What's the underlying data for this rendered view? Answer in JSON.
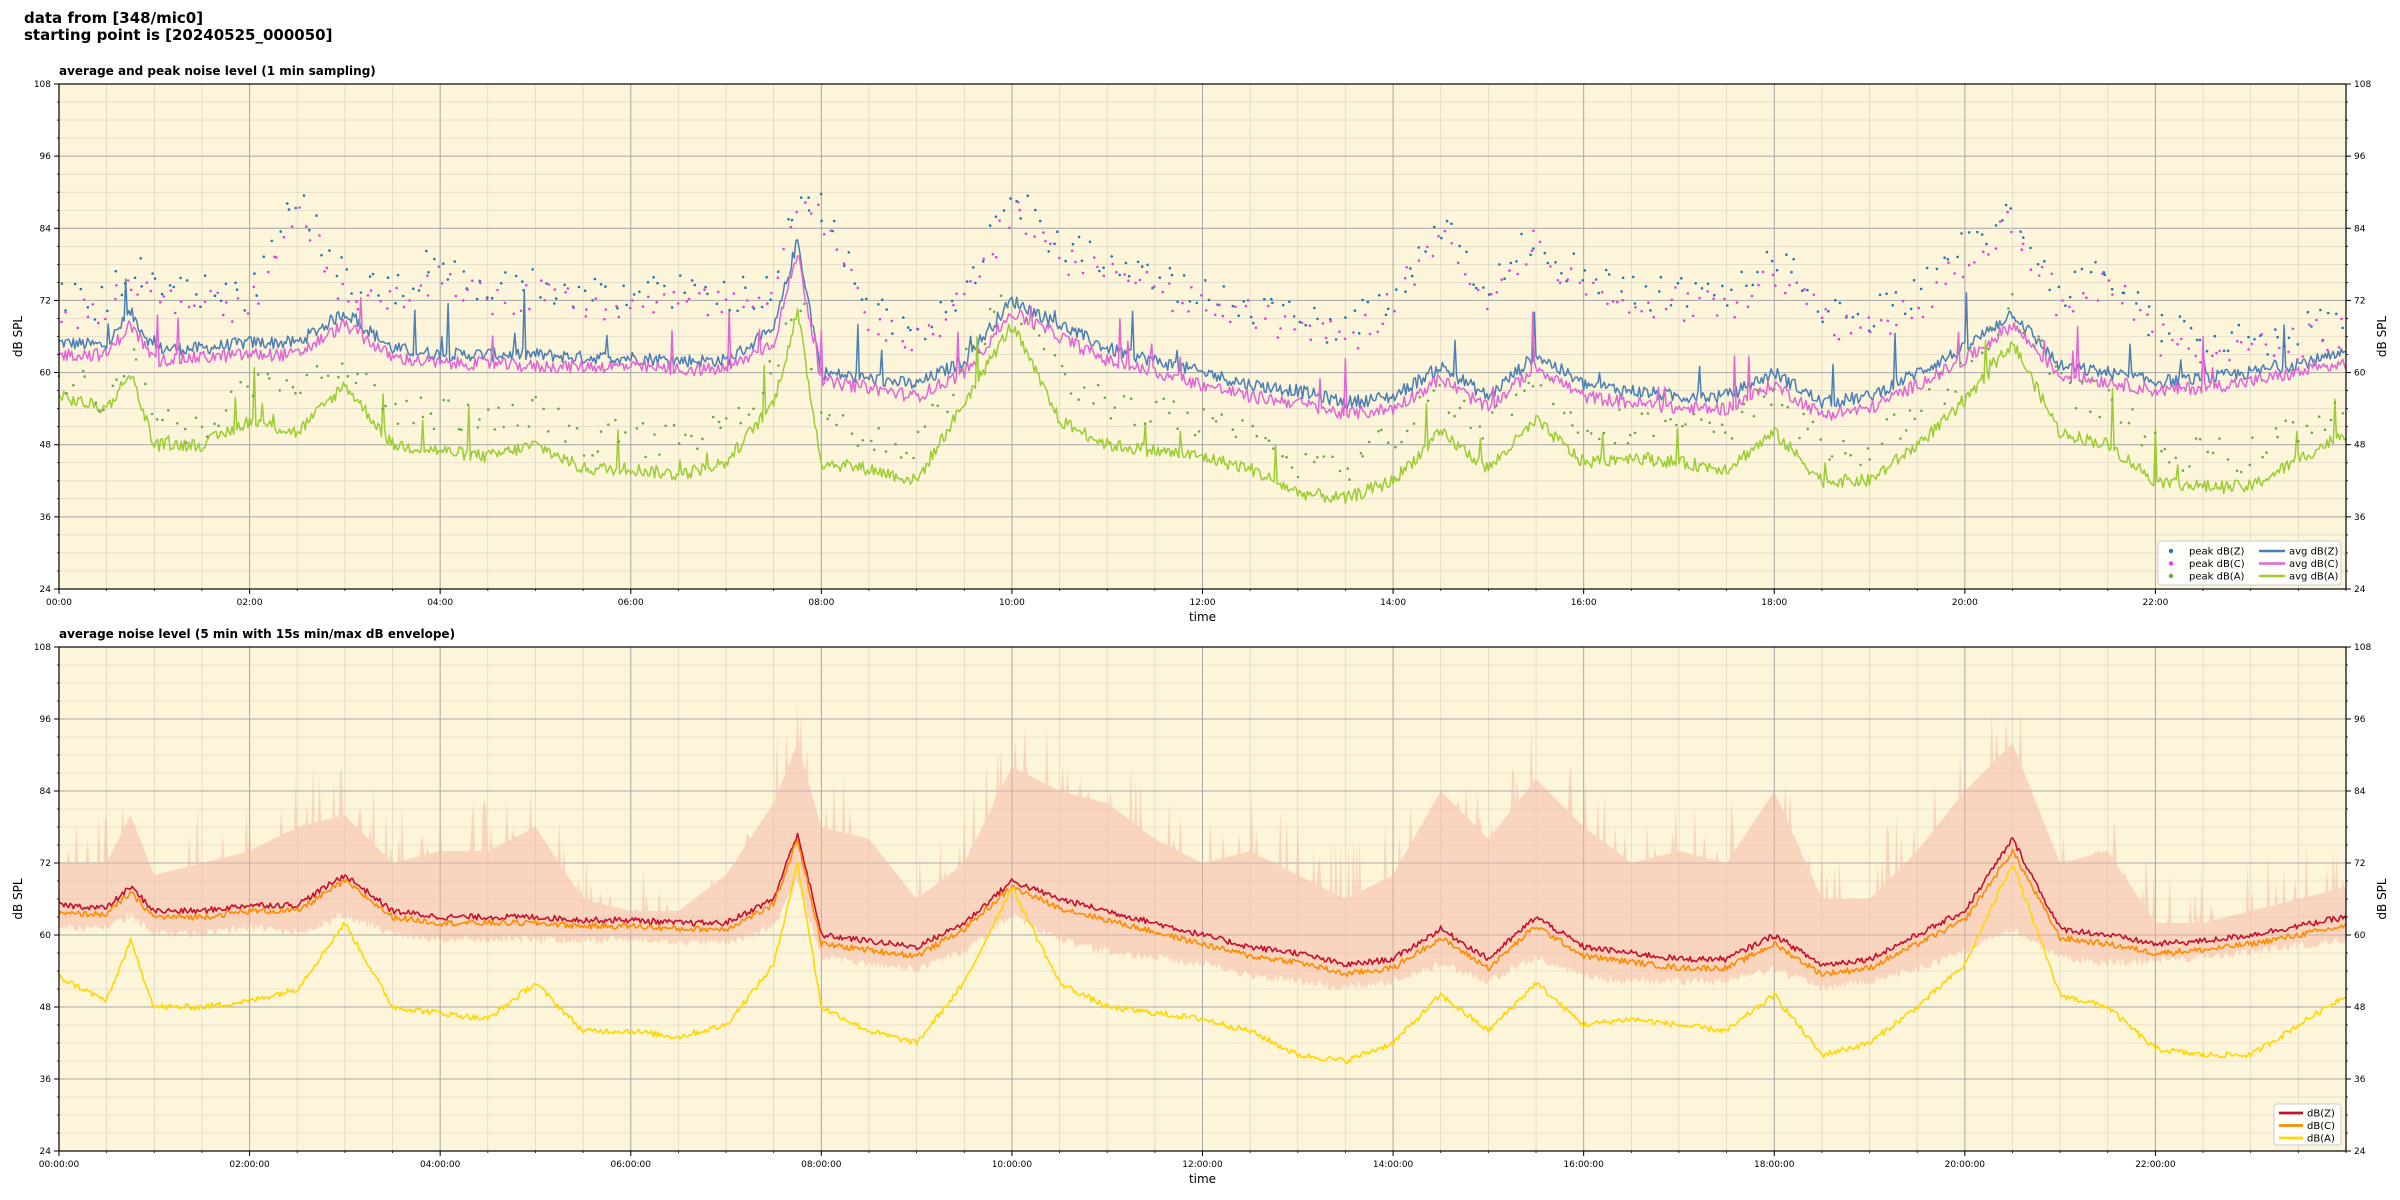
{
  "header": {
    "line1": "data from [348/mic0]",
    "line2": "starting point is [20240525_000050]"
  },
  "colors": {
    "plot_background": "#fdf5d9",
    "peak_z": "#1f77b4",
    "peak_c": "#e040e0",
    "peak_a": "#6aa84f",
    "avg_z": "#4a7fb5",
    "avg_c": "#e066d6",
    "avg_a": "#9acd32",
    "z": "#c8102e",
    "c": "#ff8c00",
    "a": "#ffd700",
    "envelope": "#f4b0a0"
  },
  "chart_data": [
    {
      "type": "line",
      "title": "average and peak noise level (1 min sampling)",
      "xlabel": "time",
      "ylabel": "dB SPL",
      "ylabel_right": "dB SPL",
      "xlim": [
        "00:00",
        "24:00"
      ],
      "ylim": [
        24,
        108
      ],
      "yticks": [
        24,
        36,
        48,
        60,
        72,
        84,
        96,
        108
      ],
      "xticks": [
        "00:00",
        "02:00",
        "04:00",
        "06:00",
        "08:00",
        "10:00",
        "12:00",
        "14:00",
        "16:00",
        "18:00",
        "20:00",
        "22:00"
      ],
      "grid": true,
      "legend_position": "bottom-right",
      "legend_columns": 2,
      "x_hours": [
        0,
        0.5,
        0.75,
        1,
        1.5,
        2,
        2.5,
        3,
        3.5,
        4,
        4.5,
        5,
        5.5,
        6,
        6.5,
        7,
        7.5,
        7.75,
        8,
        8.5,
        9,
        9.5,
        10,
        10.5,
        11,
        11.5,
        12,
        12.5,
        13,
        13.5,
        14,
        14.5,
        15,
        15.5,
        16,
        16.5,
        17,
        17.5,
        18,
        18.5,
        19,
        19.5,
        20,
        20.5,
        21,
        21.5,
        22,
        22.5,
        23,
        24
      ],
      "series": [
        {
          "name": "avg dB(Z)",
          "style": "line",
          "color": "#4a7fb5",
          "values": [
            65,
            64.5,
            70,
            64,
            64,
            65,
            65,
            70,
            64,
            63,
            63,
            63,
            62.5,
            62.5,
            62,
            62,
            67,
            82,
            60,
            59,
            58,
            62,
            72,
            68,
            64,
            62,
            60,
            58,
            57,
            55,
            56,
            61,
            56,
            63,
            58,
            57,
            56,
            56,
            60,
            55,
            56,
            60,
            64,
            70,
            61,
            60,
            58.5,
            59,
            60,
            63
          ]
        },
        {
          "name": "avg dB(C)",
          "style": "line",
          "color": "#e066d6",
          "values": [
            63,
            63,
            68,
            62,
            62.5,
            63,
            63,
            68,
            62.5,
            61.5,
            61.5,
            61,
            61,
            61,
            60.5,
            60.5,
            65,
            80,
            58.5,
            57.5,
            56,
            60,
            70,
            66,
            62,
            60,
            58,
            56,
            55,
            53,
            54,
            59,
            54,
            61,
            56,
            55,
            54,
            54,
            58,
            53,
            54,
            58,
            62,
            68,
            59.5,
            58.5,
            57,
            57.5,
            58.5,
            61.5
          ]
        },
        {
          "name": "avg dB(A)",
          "style": "line",
          "color": "#9acd32",
          "values": [
            56,
            54,
            60,
            48,
            48,
            52,
            50,
            58,
            48,
            47,
            46,
            48,
            44,
            44,
            43,
            45,
            55,
            70,
            45,
            44,
            42,
            55,
            68,
            52,
            48,
            47,
            46,
            44,
            40,
            39,
            42,
            50,
            44,
            52,
            45,
            46,
            45,
            44,
            50,
            42,
            42,
            48,
            55,
            65,
            50,
            48,
            42,
            41,
            41,
            50
          ]
        },
        {
          "name": "peak dB(Z)",
          "style": "scatter",
          "color": "#1f77b4",
          "values": [
            72,
            70,
            77,
            72,
            72,
            72,
            88,
            74,
            72,
            78,
            72,
            74,
            72,
            72,
            72,
            72,
            72,
            88,
            86,
            70,
            66,
            72,
            88,
            80,
            78,
            74,
            72,
            70,
            68,
            66,
            72,
            84,
            72,
            82,
            74,
            72,
            72,
            72,
            78,
            70,
            68,
            72,
            80,
            86,
            72,
            76,
            66,
            65,
            64,
            68
          ]
        },
        {
          "name": "peak dB(C)",
          "style": "scatter",
          "color": "#e040e0",
          "values": [
            70,
            68,
            75,
            70,
            70,
            70,
            86,
            72,
            70,
            76,
            70,
            72,
            70,
            70,
            70,
            70,
            70,
            86,
            84,
            68,
            64,
            70,
            86,
            78,
            76,
            72,
            70,
            68,
            66,
            64,
            70,
            82,
            70,
            80,
            72,
            70,
            70,
            70,
            76,
            68,
            66,
            70,
            78,
            84,
            70,
            74,
            64,
            63,
            62,
            66
          ]
        },
        {
          "name": "peak dB(A)",
          "style": "scatter",
          "color": "#6aa84f",
          "values": [
            58,
            55,
            62,
            50,
            50,
            56,
            56,
            60,
            52,
            52,
            50,
            52,
            48,
            48,
            47,
            50,
            60,
            74,
            52,
            48,
            46,
            60,
            72,
            58,
            54,
            52,
            50,
            48,
            44,
            43,
            48,
            56,
            50,
            58,
            50,
            50,
            50,
            48,
            56,
            46,
            46,
            52,
            60,
            70,
            56,
            54,
            46,
            45,
            45,
            54
          ]
        }
      ]
    },
    {
      "type": "line",
      "title": "average noise level (5 min with 15s min/max dB envelope)",
      "xlabel": "time",
      "ylabel": "dB SPL",
      "ylabel_right": "dB SPL",
      "xlim": [
        "00:00:00",
        "24:00:00"
      ],
      "ylim": [
        24,
        108
      ],
      "yticks": [
        24,
        36,
        48,
        60,
        72,
        84,
        96,
        108
      ],
      "xticks": [
        "00:00:00",
        "02:00:00",
        "04:00:00",
        "06:00:00",
        "08:00:00",
        "10:00:00",
        "12:00:00",
        "14:00:00",
        "16:00:00",
        "18:00:00",
        "20:00:00",
        "22:00:00"
      ],
      "grid": true,
      "legend_position": "bottom-right",
      "x_hours": [
        0,
        0.5,
        0.75,
        1,
        1.5,
        2,
        2.5,
        3,
        3.5,
        4,
        4.5,
        5,
        5.5,
        6,
        6.5,
        7,
        7.5,
        7.75,
        8,
        8.5,
        9,
        9.5,
        10,
        10.5,
        11,
        11.5,
        12,
        12.5,
        13,
        13.5,
        14,
        14.5,
        15,
        15.5,
        16,
        16.5,
        17,
        17.5,
        18,
        18.5,
        19,
        19.5,
        20,
        20.5,
        21,
        21.5,
        22,
        22.5,
        23,
        24
      ],
      "envelope": {
        "lower": [
          62,
          62,
          64,
          61,
          61,
          62,
          61,
          64,
          61,
          60,
          60,
          60,
          60,
          60,
          59.5,
          59.5,
          62,
          70,
          57,
          56,
          55,
          58,
          64,
          60,
          58,
          57,
          56,
          54,
          53,
          52,
          53,
          56,
          53,
          57,
          54,
          53,
          53,
          53,
          55,
          52,
          53,
          55,
          58,
          62,
          57,
          56,
          56.5,
          57,
          58,
          60
        ],
        "upper": [
          72,
          72,
          80,
          70,
          72,
          74,
          78,
          80,
          72,
          74,
          74,
          78,
          66,
          64,
          64,
          70,
          82,
          92,
          78,
          76,
          66,
          72,
          88,
          84,
          82,
          76,
          72,
          74,
          70,
          66,
          70,
          84,
          76,
          86,
          78,
          72,
          74,
          72,
          84,
          66,
          66,
          74,
          84,
          92,
          72,
          74,
          62,
          62,
          64,
          68
        ]
      },
      "series": [
        {
          "name": "dB(Z)",
          "color": "#c8102e",
          "values": [
            65,
            64.5,
            68,
            64,
            64,
            65,
            65,
            70,
            64,
            63,
            63,
            63,
            62.5,
            62.5,
            62,
            62,
            66,
            77,
            60,
            59,
            58,
            62,
            69,
            66,
            64,
            62,
            60,
            58,
            57,
            55,
            56,
            61,
            56,
            63,
            58,
            57,
            56,
            56,
            60,
            55,
            56,
            60,
            64,
            76,
            61,
            60,
            58.5,
            59,
            60,
            63
          ]
        },
        {
          "name": "dB(C)",
          "color": "#ff8c00",
          "values": [
            63.5,
            63.5,
            67,
            63,
            63,
            64,
            64,
            69,
            63,
            62,
            62,
            62,
            61.5,
            61.5,
            61,
            61,
            65,
            76,
            58.5,
            57.5,
            56.5,
            61,
            68,
            64.5,
            62.5,
            60.5,
            58.5,
            56.5,
            55.5,
            53.5,
            54.5,
            59.5,
            54.5,
            61.5,
            56.5,
            55.5,
            54.5,
            54.5,
            58.5,
            53.5,
            54.5,
            58.5,
            62.5,
            74,
            59.5,
            58.5,
            57,
            57.5,
            58.5,
            61.5
          ]
        },
        {
          "name": "dB(A)",
          "color": "#ffd700",
          "values": [
            53,
            49,
            59,
            48,
            48,
            49,
            51,
            62,
            48,
            47,
            46,
            52,
            44,
            44,
            43,
            45,
            55,
            72,
            48,
            44,
            42,
            52,
            68,
            52,
            48,
            47,
            46,
            44,
            40,
            39,
            42,
            50,
            44,
            52,
            45,
            46,
            45,
            44,
            50,
            40,
            42,
            48,
            55,
            72,
            50,
            48,
            41,
            40,
            40,
            50
          ]
        }
      ]
    }
  ]
}
